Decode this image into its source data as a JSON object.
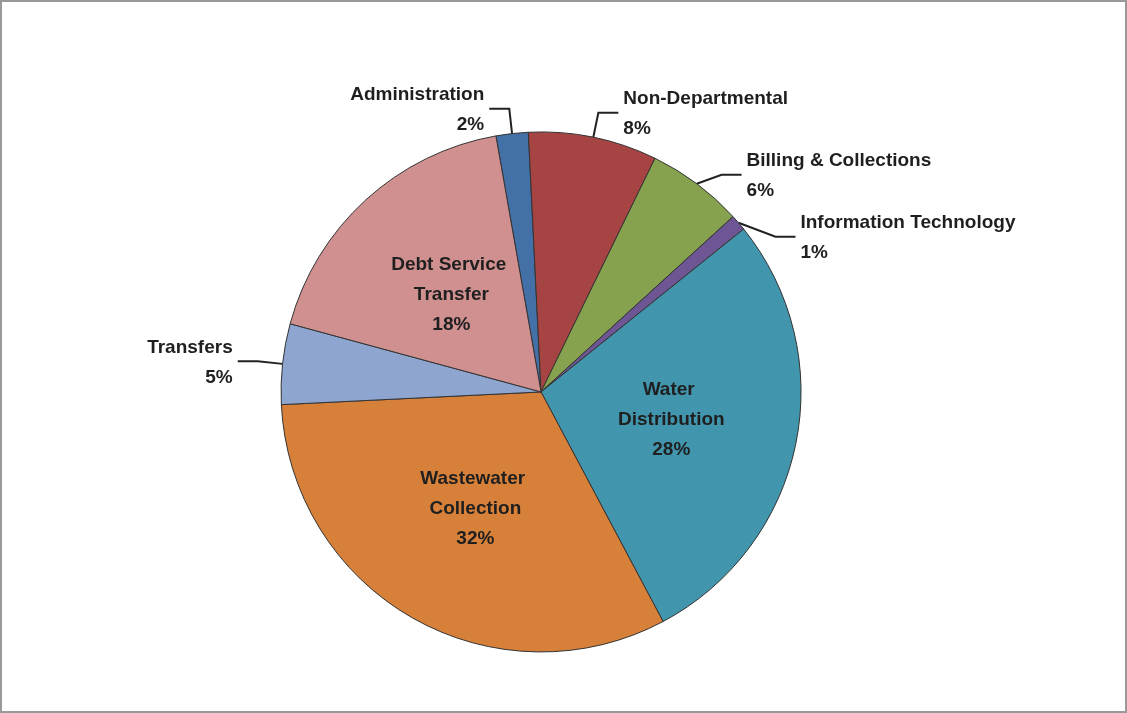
{
  "chart_data": {
    "type": "pie",
    "categories": [
      "Administration",
      "Non-Departmental",
      "Billing & Collections",
      "Information Technology",
      "Water Distribution",
      "Wastewater Collection",
      "Transfers",
      "Debt Service Transfer"
    ],
    "values": [
      2,
      8,
      6,
      1,
      28,
      32,
      5,
      18
    ],
    "value_labels": [
      "2%",
      "8%",
      "6%",
      "1%",
      "28%",
      "32%",
      "5%",
      "18%"
    ],
    "colors": [
      "#4470a8",
      "#a64444",
      "#86a24e",
      "#6e5594",
      "#4195ad",
      "#d6803a",
      "#8ea5cf",
      "#d09090"
    ]
  }
}
